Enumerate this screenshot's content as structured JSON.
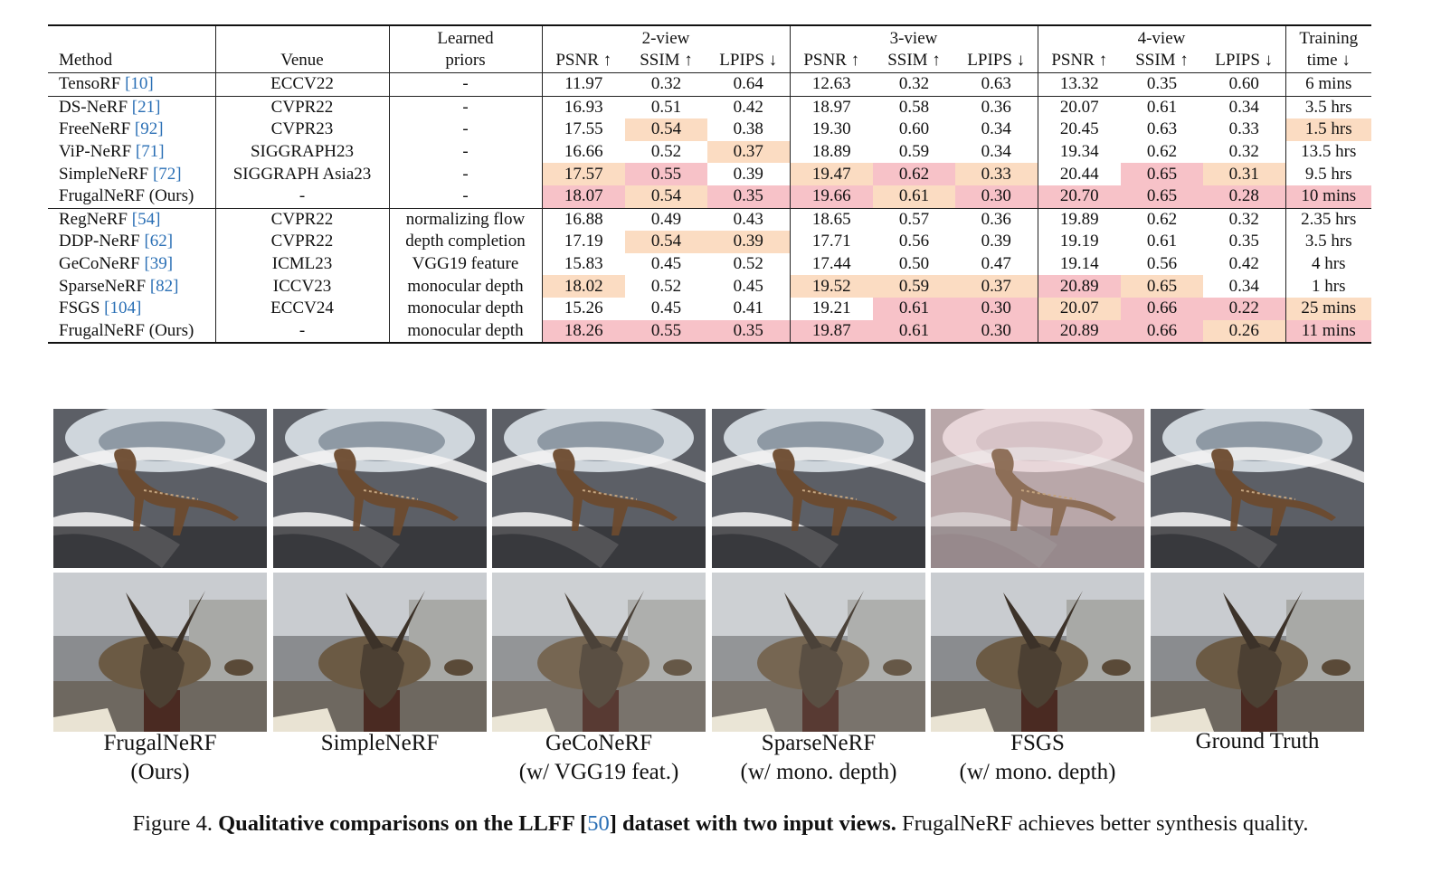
{
  "table": {
    "headers": {
      "method": "Method",
      "venue": "Venue",
      "priors_line1": "Learned",
      "priors_line2": "priors",
      "group_2view": "2-view",
      "group_3view": "3-view",
      "group_4view": "4-view",
      "psnr": "PSNR ↑",
      "ssim": "SSIM ↑",
      "lpips": "LPIPS ↓",
      "time_line1": "Training",
      "time_line2": "time ↓"
    },
    "rows": [
      {
        "name": "TensoRF ",
        "cite": "[10]",
        "venue": "ECCV22",
        "priors": "-",
        "v": [
          "11.97",
          "0.32",
          "0.64",
          "12.63",
          "0.32",
          "0.63",
          "13.32",
          "0.35",
          "0.60"
        ],
        "time": "6 mins"
      },
      {
        "name": "DS-NeRF ",
        "cite": "[21]",
        "venue": "CVPR22",
        "priors": "-",
        "v": [
          "16.93",
          "0.51",
          "0.42",
          "18.97",
          "0.58",
          "0.36",
          "20.07",
          "0.61",
          "0.34"
        ],
        "time": "3.5 hrs"
      },
      {
        "name": "FreeNeRF ",
        "cite": "[92]",
        "venue": "CVPR23",
        "priors": "-",
        "v": [
          "17.55",
          "0.54",
          "0.38",
          "19.30",
          "0.60",
          "0.34",
          "20.45",
          "0.63",
          "0.33"
        ],
        "time": "1.5 hrs"
      },
      {
        "name": "ViP-NeRF ",
        "cite": "[71]",
        "venue": "SIGGRAPH23",
        "priors": "-",
        "v": [
          "16.66",
          "0.52",
          "0.37",
          "18.89",
          "0.59",
          "0.34",
          "19.34",
          "0.62",
          "0.32"
        ],
        "time": "13.5 hrs"
      },
      {
        "name": "SimpleNeRF ",
        "cite": "[72]",
        "venue": "SIGGRAPH Asia23",
        "priors": "-",
        "v": [
          "17.57",
          "0.55",
          "0.39",
          "19.47",
          "0.62",
          "0.33",
          "20.44",
          "0.65",
          "0.31"
        ],
        "time": "9.5 hrs"
      },
      {
        "name": "FrugalNeRF (Ours)",
        "cite": "",
        "venue": "-",
        "priors": "-",
        "v": [
          "18.07",
          "0.54",
          "0.35",
          "19.66",
          "0.61",
          "0.30",
          "20.70",
          "0.65",
          "0.28"
        ],
        "time": "10 mins"
      },
      {
        "name": "RegNeRF ",
        "cite": "[54]",
        "venue": "CVPR22",
        "priors": "normalizing flow",
        "v": [
          "16.88",
          "0.49",
          "0.43",
          "18.65",
          "0.57",
          "0.36",
          "19.89",
          "0.62",
          "0.32"
        ],
        "time": "2.35 hrs"
      },
      {
        "name": "DDP-NeRF ",
        "cite": "[62]",
        "venue": "CVPR22",
        "priors": "depth completion",
        "v": [
          "17.19",
          "0.54",
          "0.39",
          "17.71",
          "0.56",
          "0.39",
          "19.19",
          "0.61",
          "0.35"
        ],
        "time": "3.5 hrs"
      },
      {
        "name": "GeCoNeRF ",
        "cite": "[39]",
        "venue": "ICML23",
        "priors": "VGG19 feature",
        "v": [
          "15.83",
          "0.45",
          "0.52",
          "17.44",
          "0.50",
          "0.47",
          "19.14",
          "0.56",
          "0.42"
        ],
        "time": "4 hrs"
      },
      {
        "name": "SparseNeRF ",
        "cite": "[82]",
        "venue": "ICCV23",
        "priors": "monocular depth",
        "v": [
          "18.02",
          "0.52",
          "0.45",
          "19.52",
          "0.59",
          "0.37",
          "20.89",
          "0.65",
          "0.34"
        ],
        "time": "1 hrs"
      },
      {
        "name": "FSGS ",
        "cite": "[104]",
        "venue": "ECCV24",
        "priors": "monocular depth",
        "v": [
          "15.26",
          "0.45",
          "0.41",
          "19.21",
          "0.61",
          "0.30",
          "20.07",
          "0.66",
          "0.22"
        ],
        "time": "25 mins"
      },
      {
        "name": "FrugalNeRF (Ours)",
        "cite": "",
        "venue": "-",
        "priors": "monocular depth",
        "v": [
          "18.26",
          "0.55",
          "0.35",
          "19.87",
          "0.61",
          "0.30",
          "20.89",
          "0.66",
          "0.26"
        ],
        "time": "11 mins"
      }
    ],
    "highlight_colors": {
      "best": "#f7c2c8",
      "second": "#fbdcc2"
    }
  },
  "figure": {
    "captions": [
      {
        "l1": "FrugalNeRF",
        "l2": "(Ours)"
      },
      {
        "l1": "SimpleNeRF",
        "l2": ""
      },
      {
        "l1": "GeCoNeRF",
        "l2": "(w/ VGG19 feat.)"
      },
      {
        "l1": "SparseNeRF",
        "l2": "(w/ mono. depth)"
      },
      {
        "l1": "FSGS",
        "l2": "(w/ mono. depth)"
      },
      {
        "l1": "Ground Truth",
        "l2": ""
      }
    ],
    "caption_prefix": "Figure 4. ",
    "caption_bold": "Qualitative comparisons on the LLFF [",
    "caption_cite": "50",
    "caption_bold_end": "] dataset with two input views.",
    "caption_rest": " FrugalNeRF achieves better synthesis quality."
  }
}
